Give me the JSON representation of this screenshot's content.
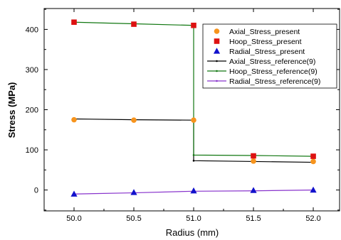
{
  "chart_data": {
    "type": "line",
    "xlabel": "Radius (mm)",
    "ylabel": "Stress (MPa)",
    "xlim": [
      49.75,
      52.22
    ],
    "ylim": [
      -52,
      452
    ],
    "xticks": [
      "50.0",
      "50.5",
      "51.0",
      "51.5",
      "52.0"
    ],
    "xtick_values": [
      50.0,
      50.5,
      51.0,
      51.5,
      52.0
    ],
    "yticks": [
      "0",
      "100",
      "200",
      "300",
      "400"
    ],
    "ytick_values": [
      0,
      100,
      200,
      300,
      400
    ],
    "legend_position": "top-right",
    "series": [
      {
        "name": "Axial_Stress_present",
        "kind": "marker",
        "marker": "circle",
        "color": "#F7941D",
        "x": [
          50.0,
          50.5,
          51.0,
          51.5,
          52.0
        ],
        "y": [
          175,
          174,
          174,
          72,
          71
        ]
      },
      {
        "name": "Hoop_Stress_present",
        "kind": "marker",
        "marker": "square",
        "color": "#DD1111",
        "x": [
          50.0,
          50.5,
          51.0,
          51.5,
          52.0
        ],
        "y": [
          418,
          413,
          410,
          85,
          84
        ]
      },
      {
        "name": "Radial_Stress_present",
        "kind": "marker",
        "marker": "triangle",
        "color": "#1111CC",
        "x": [
          50.0,
          50.5,
          51.0,
          51.5,
          52.0
        ],
        "y": [
          -10,
          -6,
          -2,
          -1,
          0
        ]
      },
      {
        "name": "Axial_Stress_reference(9)",
        "kind": "line",
        "color": "#000000",
        "x": [
          50.0,
          50.5,
          51.0,
          51.0,
          51.5,
          52.0
        ],
        "y": [
          177,
          175,
          174,
          73,
          71,
          69
        ]
      },
      {
        "name": "Hoop_Stress_reference(9)",
        "kind": "line",
        "color": "#117711",
        "x": [
          50.0,
          50.5,
          51.0,
          51.0,
          51.5,
          52.0
        ],
        "y": [
          418,
          414,
          410,
          87,
          86,
          84
        ]
      },
      {
        "name": "Radial_Stress_reference(9)",
        "kind": "line",
        "color": "#8833CC",
        "x": [
          50.0,
          50.5,
          51.0,
          51.5,
          52.0
        ],
        "y": [
          -10,
          -7,
          -3,
          -2,
          0
        ]
      }
    ]
  }
}
